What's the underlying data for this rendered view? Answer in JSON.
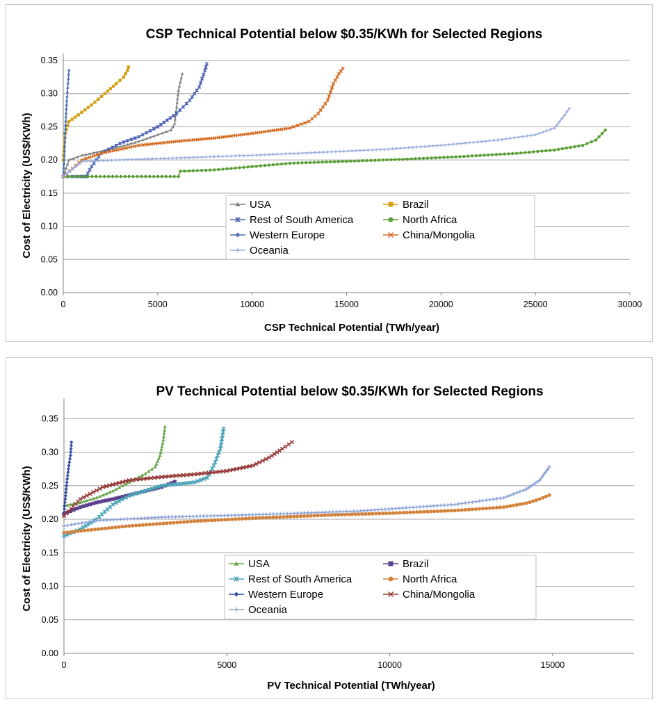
{
  "chart_data": [
    {
      "type": "line",
      "title": "CSP Technical Potential below $0.35/KWh for Selected Regions",
      "xlabel": "CSP Technical Potential (TWh/year)",
      "ylabel": "Cost of Electricity (US$/KWh)",
      "xlim": [
        0,
        30000
      ],
      "ylim": [
        0,
        0.35
      ],
      "xticks": [
        "0",
        "5000",
        "10000",
        "15000",
        "20000",
        "25000",
        "30000"
      ],
      "yticks": [
        "0.00",
        "0.05",
        "0.10",
        "0.15",
        "0.20",
        "0.25",
        "0.30",
        "0.35"
      ],
      "grid": "horizontal",
      "legend_position": "center",
      "series": [
        {
          "name": "USA",
          "color": "#7f7f7f",
          "marker": "triangle",
          "x": [
            0,
            300,
            1000,
            2000,
            3000,
            4000,
            5000,
            5700,
            5900,
            6000,
            6100,
            6300
          ],
          "y": [
            0.175,
            0.2,
            0.207,
            0.213,
            0.22,
            0.228,
            0.238,
            0.245,
            0.255,
            0.28,
            0.305,
            0.33
          ]
        },
        {
          "name": "Brazil",
          "color": "#d4a017",
          "marker": "square",
          "x": [
            0,
            100,
            300,
            800,
            1500,
            2200,
            2800,
            3200,
            3400,
            3450
          ],
          "y": [
            0.2,
            0.24,
            0.258,
            0.268,
            0.283,
            0.3,
            0.315,
            0.325,
            0.335,
            0.34
          ]
        },
        {
          "name": "Rest of South America",
          "color": "#4a5fb5",
          "marker": "cross",
          "x": [
            0,
            1200,
            1500,
            2000,
            3000,
            4000,
            5000,
            6000,
            6700,
            7200,
            7500,
            7600
          ],
          "y": [
            0.175,
            0.175,
            0.19,
            0.21,
            0.225,
            0.235,
            0.25,
            0.27,
            0.29,
            0.31,
            0.335,
            0.345
          ]
        },
        {
          "name": "North Africa",
          "color": "#5a9f35",
          "marker": "dot",
          "x": [
            0,
            6100,
            6200,
            8000,
            10000,
            12000,
            15000,
            18000,
            21000,
            24000,
            26000,
            27500,
            28200,
            28700
          ],
          "y": [
            0.175,
            0.175,
            0.183,
            0.185,
            0.19,
            0.195,
            0.198,
            0.201,
            0.205,
            0.21,
            0.215,
            0.222,
            0.23,
            0.245
          ]
        },
        {
          "name": "Western Europe",
          "color": "#4a6fb8",
          "marker": "diamond",
          "x": [
            0,
            50,
            100,
            150,
            200,
            250,
            300
          ],
          "y": [
            0.175,
            0.2,
            0.24,
            0.27,
            0.295,
            0.315,
            0.335
          ]
        },
        {
          "name": "China/Mongolia",
          "color": "#d2691e",
          "marker": "x",
          "x": [
            0,
            1000,
            2000,
            4000,
            6000,
            8000,
            10000,
            12000,
            13000,
            13500,
            14000,
            14300,
            14600,
            14800
          ],
          "y": [
            0.175,
            0.2,
            0.21,
            0.222,
            0.228,
            0.233,
            0.24,
            0.248,
            0.258,
            0.27,
            0.29,
            0.315,
            0.33,
            0.338
          ]
        },
        {
          "name": "Oceania",
          "color": "#9ab0e0",
          "marker": "plus",
          "x": [
            0,
            1000,
            3000,
            6000,
            10000,
            14000,
            17000,
            20000,
            23000,
            25000,
            26000,
            26400,
            26800
          ],
          "y": [
            0.175,
            0.198,
            0.2,
            0.203,
            0.207,
            0.212,
            0.216,
            0.222,
            0.23,
            0.238,
            0.248,
            0.262,
            0.278
          ]
        }
      ]
    },
    {
      "type": "line",
      "title": "PV Technical Potential below $0.35/KWh for Selected Regions",
      "xlabel": "PV Technical Potential (TWh/year)",
      "ylabel": "Cost of Electricity (US$/KWh)",
      "xlim": [
        0,
        17500
      ],
      "ylim": [
        0,
        0.37
      ],
      "xticks": [
        "0",
        "5000",
        "10000",
        "15000"
      ],
      "yticks": [
        "0.00",
        "0.05",
        "0.10",
        "0.15",
        "0.20",
        "0.25",
        "0.30",
        "0.35"
      ],
      "grid": "horizontal",
      "legend_position": "center",
      "series": [
        {
          "name": "USA",
          "color": "#6aa84f",
          "marker": "triangle",
          "x": [
            0,
            500,
            1000,
            1500,
            2000,
            2500,
            2800,
            2950,
            3050,
            3100
          ],
          "y": [
            0.22,
            0.225,
            0.232,
            0.242,
            0.255,
            0.268,
            0.278,
            0.295,
            0.318,
            0.338
          ]
        },
        {
          "name": "Brazil",
          "color": "#5b3f8a",
          "marker": "square",
          "x": [
            0,
            500,
            1000,
            1500,
            2000,
            2500,
            3000,
            3400
          ],
          "y": [
            0.208,
            0.218,
            0.225,
            0.23,
            0.236,
            0.242,
            0.248,
            0.256
          ]
        },
        {
          "name": "Rest of South America",
          "color": "#4ba3b8",
          "marker": "asterisk",
          "x": [
            0,
            500,
            1000,
            1500,
            2000,
            3000,
            4000,
            4400,
            4600,
            4800,
            4900
          ],
          "y": [
            0.175,
            0.185,
            0.2,
            0.222,
            0.235,
            0.25,
            0.255,
            0.262,
            0.28,
            0.305,
            0.335
          ]
        },
        {
          "name": "North Africa",
          "color": "#d2823a",
          "marker": "dot",
          "x": [
            0,
            2000,
            4000,
            6000,
            8000,
            10000,
            12000,
            13500,
            14200,
            14600,
            14900
          ],
          "y": [
            0.18,
            0.19,
            0.197,
            0.202,
            0.206,
            0.209,
            0.213,
            0.218,
            0.224,
            0.23,
            0.236
          ]
        },
        {
          "name": "Western Europe",
          "color": "#3550a5",
          "marker": "diamond",
          "x": [
            0,
            50,
            100,
            150,
            200,
            230
          ],
          "y": [
            0.21,
            0.235,
            0.26,
            0.28,
            0.295,
            0.315
          ]
        },
        {
          "name": "China/Mongolia",
          "color": "#943634",
          "marker": "x",
          "x": [
            0,
            500,
            1200,
            2000,
            3000,
            4000,
            5000,
            5800,
            6300,
            6700,
            7000
          ],
          "y": [
            0.205,
            0.23,
            0.248,
            0.258,
            0.263,
            0.267,
            0.272,
            0.28,
            0.292,
            0.305,
            0.315
          ]
        },
        {
          "name": "Oceania",
          "color": "#8ea4d8",
          "marker": "plus",
          "x": [
            0,
            1000,
            3000,
            6000,
            9000,
            12000,
            13500,
            14200,
            14600,
            14900
          ],
          "y": [
            0.19,
            0.198,
            0.203,
            0.207,
            0.212,
            0.222,
            0.232,
            0.245,
            0.258,
            0.278
          ]
        }
      ]
    }
  ]
}
